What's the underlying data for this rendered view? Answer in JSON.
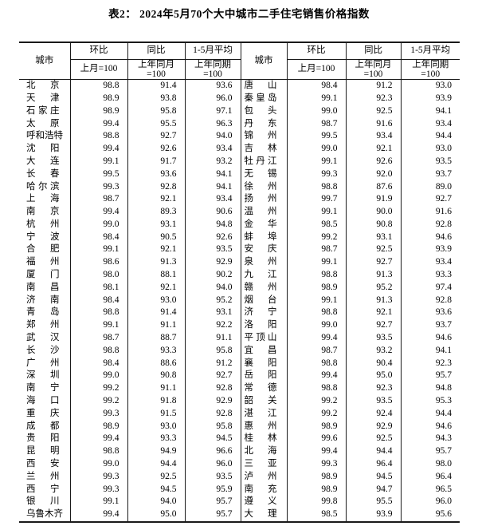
{
  "page": {
    "title": "表2： 2024年5月70个大中城市二手住宅销售价格指数"
  },
  "table": {
    "header": {
      "city": "城市",
      "mom_label": "环比",
      "mom_base": "上月=100",
      "yoy_label": "同比",
      "yoy_base_line1": "上年同月",
      "yoy_base_line2": "=100",
      "avg_label": "1-5月平均",
      "avg_base_line1": "上年同期",
      "avg_base_line2": "=100"
    },
    "rows": [
      {
        "city_left": "北京",
        "mom_left": "98.8",
        "yoy_left": "91.4",
        "avg_left": "93.6",
        "city_right": "唐山",
        "mom_right": "98.4",
        "yoy_right": "91.2",
        "avg_right": "93.0"
      },
      {
        "city_left": "天津",
        "mom_left": "98.9",
        "yoy_left": "93.8",
        "avg_left": "96.0",
        "city_right": "秦皇岛",
        "mom_right": "99.1",
        "yoy_right": "92.3",
        "avg_right": "93.9"
      },
      {
        "city_left": "石家庄",
        "mom_left": "98.9",
        "yoy_left": "95.8",
        "avg_left": "97.1",
        "city_right": "包头",
        "mom_right": "99.0",
        "yoy_right": "92.5",
        "avg_right": "94.1"
      },
      {
        "city_left": "太原",
        "mom_left": "99.4",
        "yoy_left": "95.5",
        "avg_left": "96.3",
        "city_right": "丹东",
        "mom_right": "98.7",
        "yoy_right": "91.6",
        "avg_right": "93.4"
      },
      {
        "city_left": "呼和浩特",
        "mom_left": "98.8",
        "yoy_left": "92.7",
        "avg_left": "94.0",
        "city_right": "锦州",
        "mom_right": "99.5",
        "yoy_right": "93.4",
        "avg_right": "94.4"
      },
      {
        "city_left": "沈阳",
        "mom_left": "99.4",
        "yoy_left": "92.6",
        "avg_left": "93.4",
        "city_right": "吉林",
        "mom_right": "99.0",
        "yoy_right": "92.1",
        "avg_right": "93.0"
      },
      {
        "city_left": "大连",
        "mom_left": "99.1",
        "yoy_left": "91.7",
        "avg_left": "93.2",
        "city_right": "牡丹江",
        "mom_right": "99.1",
        "yoy_right": "92.6",
        "avg_right": "93.5"
      },
      {
        "city_left": "长春",
        "mom_left": "99.5",
        "yoy_left": "93.6",
        "avg_left": "94.1",
        "city_right": "无锡",
        "mom_right": "99.3",
        "yoy_right": "92.0",
        "avg_right": "93.7"
      },
      {
        "city_left": "哈尔滨",
        "mom_left": "99.3",
        "yoy_left": "92.8",
        "avg_left": "94.1",
        "city_right": "徐州",
        "mom_right": "98.8",
        "yoy_right": "87.6",
        "avg_right": "89.0"
      },
      {
        "city_left": "上海",
        "mom_left": "98.7",
        "yoy_left": "92.1",
        "avg_left": "93.4",
        "city_right": "扬州",
        "mom_right": "99.7",
        "yoy_right": "91.9",
        "avg_right": "92.7"
      },
      {
        "city_left": "南京",
        "mom_left": "99.4",
        "yoy_left": "89.3",
        "avg_left": "90.6",
        "city_right": "温州",
        "mom_right": "99.1",
        "yoy_right": "90.0",
        "avg_right": "91.6"
      },
      {
        "city_left": "杭州",
        "mom_left": "99.0",
        "yoy_left": "93.1",
        "avg_left": "94.8",
        "city_right": "金华",
        "mom_right": "98.5",
        "yoy_right": "90.8",
        "avg_right": "92.8"
      },
      {
        "city_left": "宁波",
        "mom_left": "98.4",
        "yoy_left": "90.5",
        "avg_left": "92.6",
        "city_right": "蚌埠",
        "mom_right": "99.2",
        "yoy_right": "93.1",
        "avg_right": "94.6"
      },
      {
        "city_left": "合肥",
        "mom_left": "99.1",
        "yoy_left": "92.1",
        "avg_left": "93.5",
        "city_right": "安庆",
        "mom_right": "98.7",
        "yoy_right": "92.5",
        "avg_right": "93.9"
      },
      {
        "city_left": "福州",
        "mom_left": "98.6",
        "yoy_left": "91.3",
        "avg_left": "92.9",
        "city_right": "泉州",
        "mom_right": "99.1",
        "yoy_right": "92.7",
        "avg_right": "93.4"
      },
      {
        "city_left": "厦门",
        "mom_left": "98.0",
        "yoy_left": "88.1",
        "avg_left": "90.2",
        "city_right": "九江",
        "mom_right": "98.8",
        "yoy_right": "91.3",
        "avg_right": "93.3"
      },
      {
        "city_left": "南昌",
        "mom_left": "98.1",
        "yoy_left": "92.1",
        "avg_left": "94.0",
        "city_right": "赣州",
        "mom_right": "98.9",
        "yoy_right": "95.2",
        "avg_right": "97.4"
      },
      {
        "city_left": "济南",
        "mom_left": "98.4",
        "yoy_left": "93.0",
        "avg_left": "95.2",
        "city_right": "烟台",
        "mom_right": "99.1",
        "yoy_right": "91.3",
        "avg_right": "92.8"
      },
      {
        "city_left": "青岛",
        "mom_left": "98.8",
        "yoy_left": "91.4",
        "avg_left": "93.1",
        "city_right": "济宁",
        "mom_right": "98.8",
        "yoy_right": "92.1",
        "avg_right": "93.6"
      },
      {
        "city_left": "郑州",
        "mom_left": "99.1",
        "yoy_left": "91.1",
        "avg_left": "92.2",
        "city_right": "洛阳",
        "mom_right": "99.0",
        "yoy_right": "92.7",
        "avg_right": "93.7"
      },
      {
        "city_left": "武汉",
        "mom_left": "98.7",
        "yoy_left": "88.7",
        "avg_left": "91.1",
        "city_right": "平顶山",
        "mom_right": "99.4",
        "yoy_right": "93.5",
        "avg_right": "94.6"
      },
      {
        "city_left": "长沙",
        "mom_left": "98.8",
        "yoy_left": "93.3",
        "avg_left": "95.8",
        "city_right": "宜昌",
        "mom_right": "98.7",
        "yoy_right": "93.2",
        "avg_right": "94.1"
      },
      {
        "city_left": "广州",
        "mom_left": "98.4",
        "yoy_left": "88.6",
        "avg_left": "91.2",
        "city_right": "襄阳",
        "mom_right": "98.8",
        "yoy_right": "90.4",
        "avg_right": "92.3"
      },
      {
        "city_left": "深圳",
        "mom_left": "99.0",
        "yoy_left": "90.8",
        "avg_left": "92.7",
        "city_right": "岳阳",
        "mom_right": "99.4",
        "yoy_right": "95.0",
        "avg_right": "95.7"
      },
      {
        "city_left": "南宁",
        "mom_left": "99.2",
        "yoy_left": "91.1",
        "avg_left": "92.8",
        "city_right": "常德",
        "mom_right": "98.8",
        "yoy_right": "92.3",
        "avg_right": "94.8"
      },
      {
        "city_left": "海口",
        "mom_left": "99.2",
        "yoy_left": "91.8",
        "avg_left": "92.9",
        "city_right": "韶关",
        "mom_right": "99.2",
        "yoy_right": "93.5",
        "avg_right": "95.3"
      },
      {
        "city_left": "重庆",
        "mom_left": "99.3",
        "yoy_left": "91.5",
        "avg_left": "92.8",
        "city_right": "湛江",
        "mom_right": "99.2",
        "yoy_right": "92.4",
        "avg_right": "94.4"
      },
      {
        "city_left": "成都",
        "mom_left": "98.9",
        "yoy_left": "93.0",
        "avg_left": "95.8",
        "city_right": "惠州",
        "mom_right": "98.9",
        "yoy_right": "92.9",
        "avg_right": "94.6"
      },
      {
        "city_left": "贵阳",
        "mom_left": "99.4",
        "yoy_left": "93.3",
        "avg_left": "94.5",
        "city_right": "桂林",
        "mom_right": "99.6",
        "yoy_right": "92.5",
        "avg_right": "94.3"
      },
      {
        "city_left": "昆明",
        "mom_left": "98.8",
        "yoy_left": "94.9",
        "avg_left": "96.6",
        "city_right": "北海",
        "mom_right": "99.4",
        "yoy_right": "94.4",
        "avg_right": "95.7"
      },
      {
        "city_left": "西安",
        "mom_left": "99.0",
        "yoy_left": "94.4",
        "avg_left": "96.0",
        "city_right": "三亚",
        "mom_right": "99.3",
        "yoy_right": "96.4",
        "avg_right": "98.0"
      },
      {
        "city_left": "兰州",
        "mom_left": "99.3",
        "yoy_left": "92.5",
        "avg_left": "93.5",
        "city_right": "泸州",
        "mom_right": "98.9",
        "yoy_right": "94.5",
        "avg_right": "96.4"
      },
      {
        "city_left": "西宁",
        "mom_left": "99.3",
        "yoy_left": "94.5",
        "avg_left": "95.9",
        "city_right": "南充",
        "mom_right": "98.9",
        "yoy_right": "94.7",
        "avg_right": "96.5"
      },
      {
        "city_left": "银川",
        "mom_left": "99.1",
        "yoy_left": "94.0",
        "avg_left": "95.7",
        "city_right": "遵义",
        "mom_right": "99.8",
        "yoy_right": "95.5",
        "avg_right": "96.0"
      },
      {
        "city_left": "乌鲁木齐",
        "mom_left": "99.4",
        "yoy_left": "95.0",
        "avg_left": "95.7",
        "city_right": "大理",
        "mom_right": "98.5",
        "yoy_right": "93.9",
        "avg_right": "95.6"
      }
    ]
  },
  "chart_data": {
    "type": "table",
    "title": "表2： 2024年5月70个大中城市二手住宅销售价格指数",
    "columns": [
      "城市",
      "环比(上月=100)",
      "同比(上年同月=100)",
      "1-5月平均(上年同期=100)"
    ],
    "note": "two side-by-side half tables, 35 city rows each, 70 cities total; values bound from table.rows"
  }
}
